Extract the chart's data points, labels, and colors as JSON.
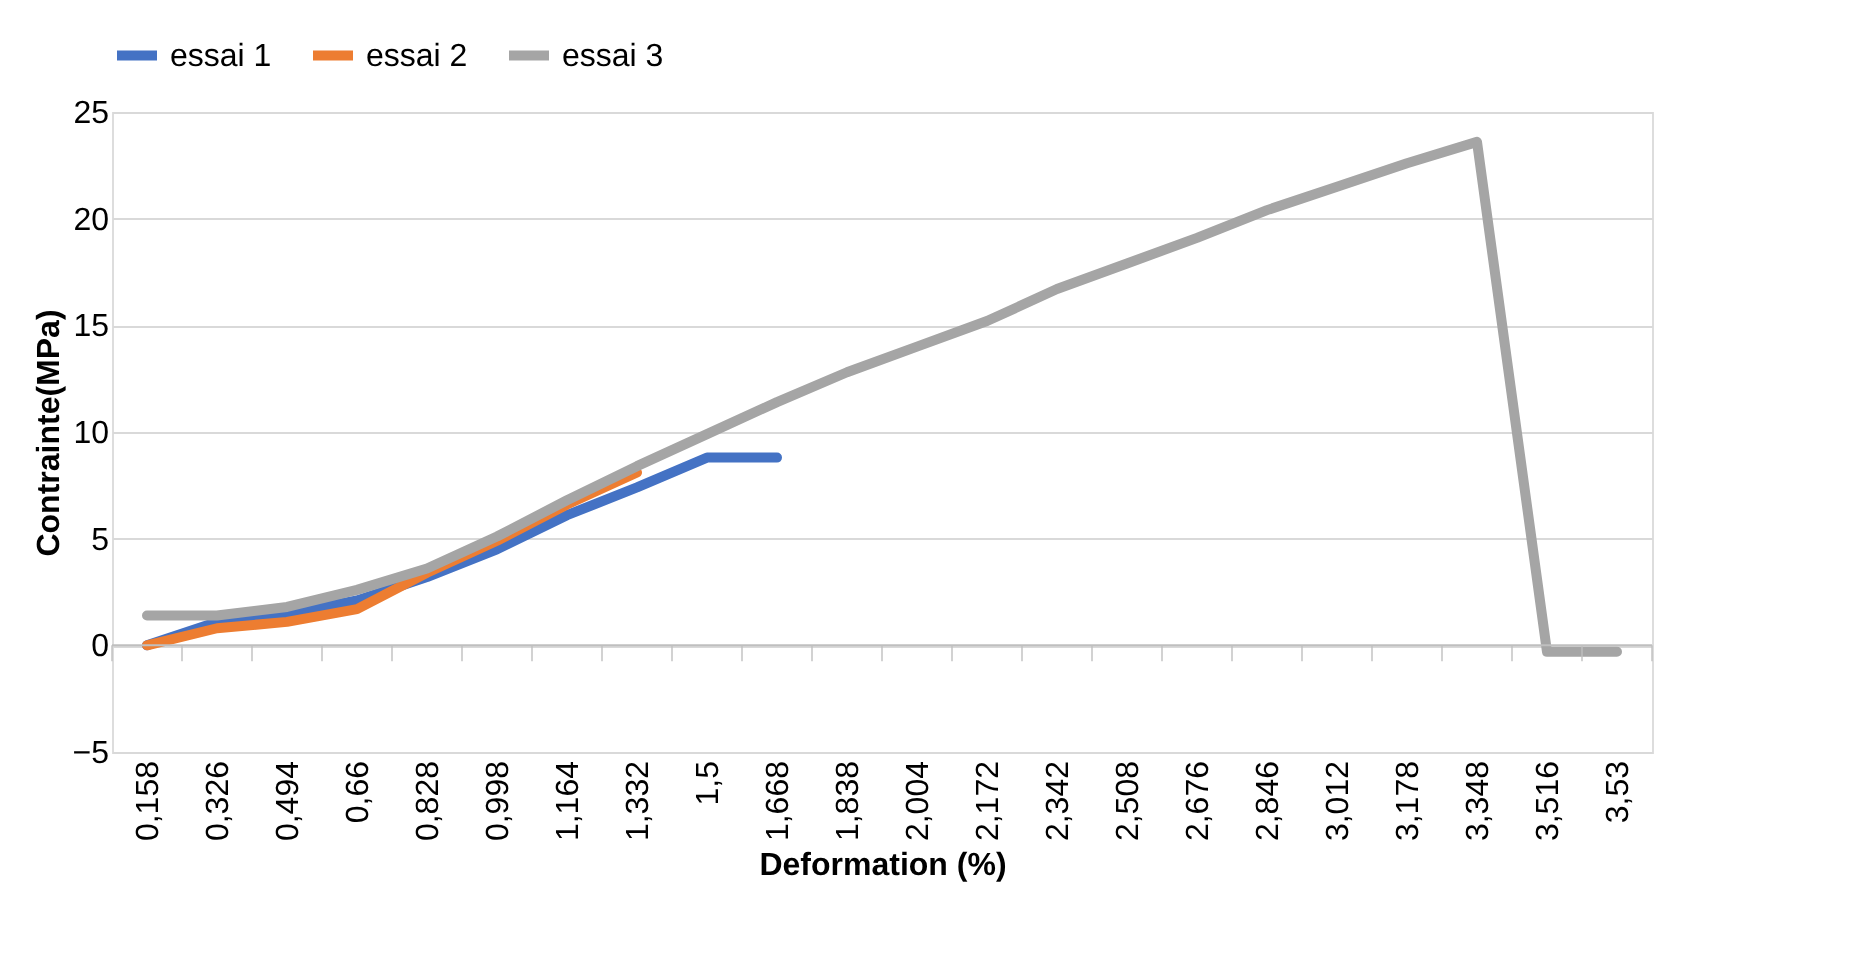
{
  "chart_data": {
    "type": "line",
    "xlabel": "Deformation (%)",
    "ylabel": "Contrainte(MPa)",
    "categories": [
      "0,158",
      "0,326",
      "0,494",
      "0,66",
      "0,828",
      "0,998",
      "1,164",
      "1,332",
      "1,5",
      "1,668",
      "1,838",
      "2,004",
      "2,172",
      "2,342",
      "2,508",
      "2,676",
      "2,846",
      "3,012",
      "3,178",
      "3,348",
      "3,516",
      "3,53"
    ],
    "series": [
      {
        "name": "essai 1",
        "color": "#4472c4",
        "values": [
          0,
          1.1,
          1.5,
          2.1,
          3.2,
          4.5,
          6.1,
          7.4,
          8.8,
          8.8,
          null,
          null,
          null,
          null,
          null,
          null,
          null,
          null,
          null,
          null,
          null,
          null
        ]
      },
      {
        "name": "essai 2",
        "color": "#ed7d31",
        "values": [
          0,
          0.8,
          1.1,
          1.7,
          3.4,
          4.9,
          6.6,
          8.1,
          null,
          null,
          null,
          null,
          null,
          null,
          null,
          null,
          null,
          null,
          null,
          null,
          null,
          null
        ]
      },
      {
        "name": "essai 3",
        "color": "#a5a5a5",
        "values": [
          1.4,
          1.4,
          1.8,
          2.6,
          3.6,
          5.1,
          6.8,
          8.4,
          9.9,
          11.4,
          12.8,
          14.0,
          15.2,
          16.7,
          17.9,
          19.1,
          20.4,
          21.5,
          22.6,
          23.6,
          -0.3,
          -0.3
        ]
      }
    ],
    "ylim": [
      -5,
      25
    ],
    "yticks": [
      -5,
      0,
      5,
      10,
      15,
      20,
      25
    ],
    "grid": "y",
    "legend": "top",
    "marker": "none",
    "line_style": "solid"
  }
}
